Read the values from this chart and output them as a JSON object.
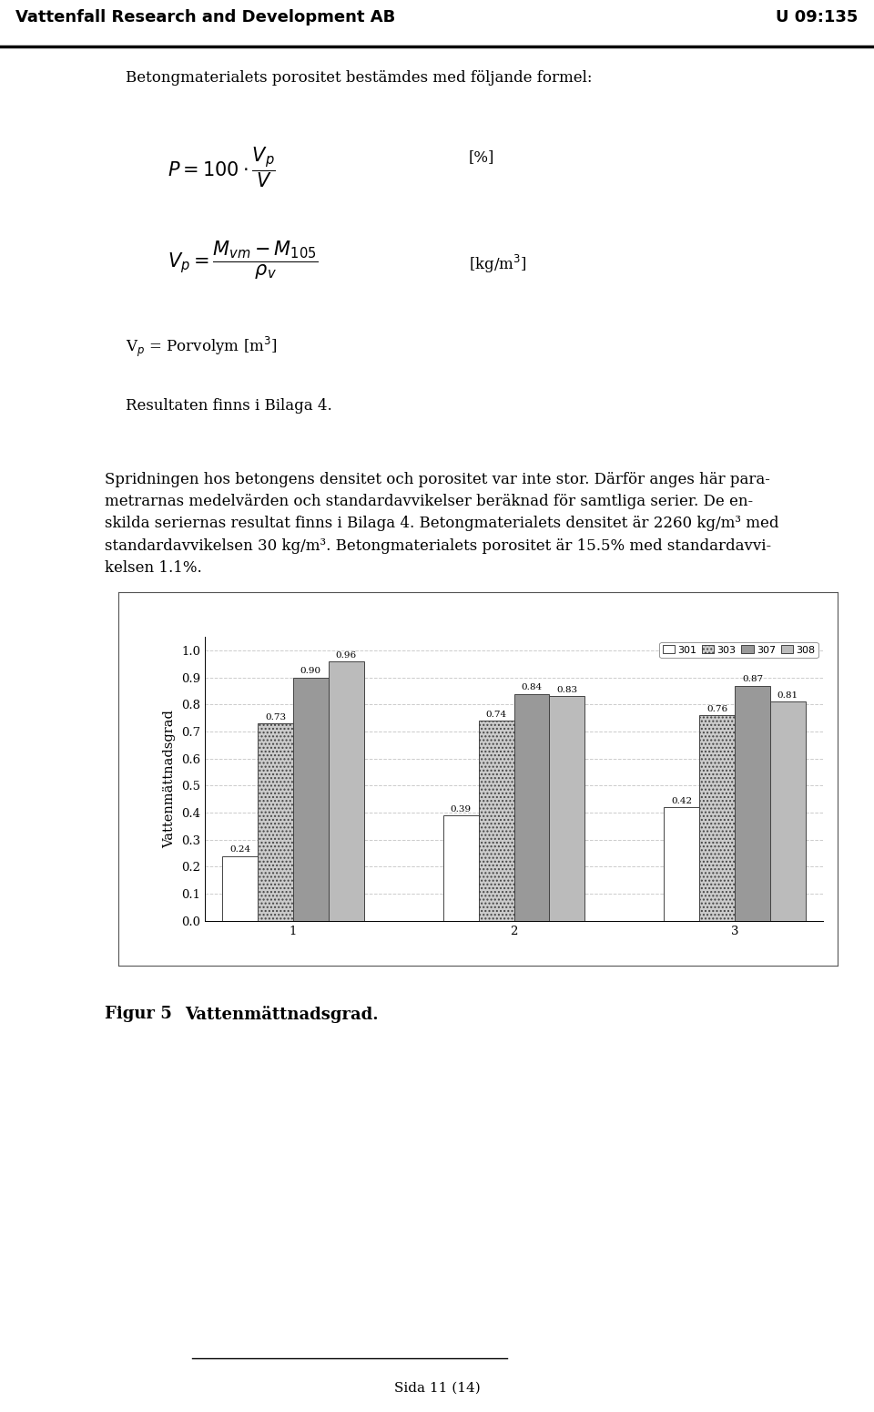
{
  "groups": [
    1,
    2,
    3
  ],
  "series_labels": [
    "301",
    "303",
    "307",
    "308"
  ],
  "values": {
    "301": [
      0.24,
      0.39,
      0.42
    ],
    "303": [
      0.73,
      0.74,
      0.76
    ],
    "307": [
      0.9,
      0.84,
      0.87
    ],
    "308": [
      0.96,
      0.83,
      0.81
    ]
  },
  "bar_colors": {
    "301": "#ffffff",
    "303": "#cccccc",
    "307": "#999999",
    "308": "#bbbbbb"
  },
  "bar_hatches": {
    "301": "",
    "303": "....",
    "307": "",
    "308": ""
  },
  "bar_edgecolors": {
    "301": "#444444",
    "303": "#444444",
    "307": "#444444",
    "308": "#444444"
  },
  "ylabel": "Vattenmättnadsgrad",
  "ylim": [
    0.0,
    1.05
  ],
  "yticks": [
    0.0,
    0.1,
    0.2,
    0.3,
    0.4,
    0.5,
    0.6,
    0.7,
    0.8,
    0.9,
    1.0
  ],
  "bar_width": 0.16,
  "background_color": "#ffffff",
  "grid_color": "#cccccc",
  "page_title_left": "Vattenfall Research and Development AB",
  "page_title_right": "U 09:135",
  "page_number": "Sida 11 (14)",
  "figcaption_bold": "Figur 5",
  "figcaption_text": "Vattenmättnadsgrad."
}
